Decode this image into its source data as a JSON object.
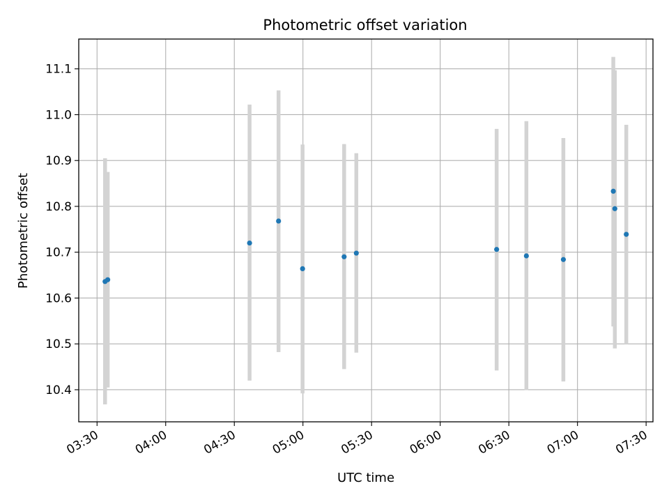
{
  "chart_data": {
    "type": "scatter",
    "title": "Photometric offset variation",
    "xlabel": "UTC time",
    "ylabel": "Photometric offset",
    "grid": true,
    "x_tick_labels": [
      "03:30",
      "04:00",
      "04:30",
      "05:00",
      "05:30",
      "06:00",
      "06:30",
      "07:00",
      "07:30"
    ],
    "x_tick_values": [
      "03:30",
      "04:00",
      "04:30",
      "05:00",
      "05:30",
      "06:00",
      "06:30",
      "07:00",
      "07:30"
    ],
    "xlim": [
      "03:22",
      "07:33"
    ],
    "y_ticks": [
      10.4,
      10.5,
      10.6,
      10.7,
      10.8,
      10.9,
      11.0,
      11.1
    ],
    "y_tick_labels": [
      "10.4",
      "10.5",
      "10.6",
      "10.7",
      "10.8",
      "10.9",
      "11.0",
      "11.1"
    ],
    "ylim": [
      10.33,
      11.165
    ],
    "marker_color": "#1f77b4",
    "errorbar_color": "#d3d3d3",
    "points": [
      {
        "x": "03:33:30",
        "y": 10.636,
        "ylow": 10.368,
        "yhigh": 10.905
      },
      {
        "x": "03:34:40",
        "y": 10.64,
        "ylow": 10.405,
        "yhigh": 10.875
      },
      {
        "x": "04:36:40",
        "y": 10.72,
        "ylow": 10.42,
        "yhigh": 11.022
      },
      {
        "x": "04:49:20",
        "y": 10.768,
        "ylow": 10.482,
        "yhigh": 11.053
      },
      {
        "x": "04:59:50",
        "y": 10.664,
        "ylow": 10.392,
        "yhigh": 10.935
      },
      {
        "x": "05:18:00",
        "y": 10.69,
        "ylow": 10.445,
        "yhigh": 10.936
      },
      {
        "x": "05:23:20",
        "y": 10.698,
        "ylow": 10.481,
        "yhigh": 10.916
      },
      {
        "x": "06:24:40",
        "y": 10.706,
        "ylow": 10.442,
        "yhigh": 10.969
      },
      {
        "x": "06:37:40",
        "y": 10.692,
        "ylow": 10.399,
        "yhigh": 10.986
      },
      {
        "x": "06:53:50",
        "y": 10.684,
        "ylow": 10.418,
        "yhigh": 10.949
      },
      {
        "x": "07:15:40",
        "y": 10.833,
        "ylow": 10.538,
        "yhigh": 11.126
      },
      {
        "x": "07:16:20",
        "y": 10.795,
        "ylow": 10.49,
        "yhigh": 11.097
      },
      {
        "x": "07:21:20",
        "y": 10.739,
        "ylow": 10.5,
        "yhigh": 10.978
      }
    ]
  }
}
